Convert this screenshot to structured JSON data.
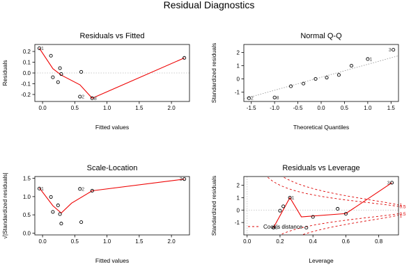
{
  "figure": {
    "title": "Residual Diagnostics"
  },
  "chart_data": [
    {
      "type": "scatter",
      "title": "Residuals vs Fitted",
      "xlabel": "Fitted values",
      "ylabel": "Residuals",
      "xlim": [
        -0.12,
        2.28
      ],
      "ylim": [
        -0.265,
        0.265
      ],
      "xticks": [
        0,
        0.5,
        1,
        1.5,
        2
      ],
      "xtick_labels": [
        "0.0",
        "0.5",
        "1.0",
        "1.5",
        "2.0"
      ],
      "yticks": [
        -0.2,
        -0.1,
        0,
        0.1,
        0.2
      ],
      "ytick_labels": [
        "-0.2",
        "-0.1",
        "0.0",
        "0.1",
        "0.2"
      ],
      "reference_line": "dotted horizontal at 0",
      "points": [
        {
          "x": -0.05,
          "y": 0.23,
          "label": "1"
        },
        {
          "x": 0.13,
          "y": 0.16
        },
        {
          "x": 0.16,
          "y": -0.04
        },
        {
          "x": 0.24,
          "y": -0.085
        },
        {
          "x": 0.27,
          "y": 0.045
        },
        {
          "x": 0.29,
          "y": -0.01
        },
        {
          "x": 0.58,
          "y": -0.22,
          "label": "2"
        },
        {
          "x": 0.6,
          "y": 0.01
        },
        {
          "x": 0.77,
          "y": -0.235,
          "label": "8"
        },
        {
          "x": 2.2,
          "y": 0.14
        }
      ],
      "smoother": [
        [
          -0.05,
          0.23
        ],
        [
          0.16,
          0.04
        ],
        [
          0.29,
          -0.02
        ],
        [
          0.58,
          -0.11
        ],
        [
          0.77,
          -0.235
        ],
        [
          2.2,
          0.14
        ]
      ]
    },
    {
      "type": "scatter",
      "title": "Normal Q-Q",
      "xlabel": "Theoretical Quantiles",
      "ylabel": "Standardized residuals",
      "xlim": [
        -1.66,
        1.66
      ],
      "ylim": [
        -1.7,
        2.6
      ],
      "xticks": [
        -1.5,
        -1,
        -0.5,
        0,
        0.5,
        1,
        1.5
      ],
      "xtick_labels": [
        "-1.5",
        "-1.0",
        "-0.5",
        "0.0",
        "0.5",
        "1.0",
        "1.5"
      ],
      "yticks": [
        -1,
        0,
        1,
        2
      ],
      "ytick_labels": [
        "-1",
        "0",
        "1",
        "2"
      ],
      "reference_line": "dotted diagonal",
      "ref_line_points": [
        [
          -1.66,
          -1.5
        ],
        [
          1.66,
          1.75
        ]
      ],
      "points": [
        {
          "x": -1.55,
          "y": -1.45,
          "label": "2"
        },
        {
          "x": -1.0,
          "y": -1.4,
          "label": "8"
        },
        {
          "x": -0.65,
          "y": -0.55
        },
        {
          "x": -0.38,
          "y": -0.35
        },
        {
          "x": -0.12,
          "y": 0.0
        },
        {
          "x": 0.12,
          "y": 0.1
        },
        {
          "x": 0.38,
          "y": 0.3
        },
        {
          "x": 0.65,
          "y": 1.0
        },
        {
          "x": 1.0,
          "y": 1.5,
          "label": "1"
        },
        {
          "x": 1.55,
          "y": 2.2,
          "label": "3"
        }
      ]
    },
    {
      "type": "scatter",
      "title": "Scale-Location",
      "xlabel": "Fitted values",
      "ylabel": "√|Standardized residuals|",
      "xlim": [
        -0.12,
        2.28
      ],
      "ylim": [
        -0.05,
        1.55
      ],
      "xticks": [
        0,
        0.5,
        1,
        1.5,
        2
      ],
      "xtick_labels": [
        "0.0",
        "0.5",
        "1.0",
        "1.5",
        "2.0"
      ],
      "yticks": [
        0,
        0.5,
        1,
        1.5
      ],
      "ytick_labels": [
        "0.0",
        "0.5",
        "1.0",
        "1.5"
      ],
      "points": [
        {
          "x": -0.05,
          "y": 1.22,
          "label": "1"
        },
        {
          "x": 0.13,
          "y": 0.99
        },
        {
          "x": 0.16,
          "y": 0.58
        },
        {
          "x": 0.24,
          "y": 0.76
        },
        {
          "x": 0.27,
          "y": 0.52
        },
        {
          "x": 0.29,
          "y": 0.26
        },
        {
          "x": 0.58,
          "y": 1.21,
          "label": "2"
        },
        {
          "x": 0.6,
          "y": 0.3
        },
        {
          "x": 0.77,
          "y": 1.16
        },
        {
          "x": 2.2,
          "y": 1.48,
          "label": "3"
        }
      ],
      "smoother": [
        [
          -0.05,
          1.24
        ],
        [
          0.16,
          0.75
        ],
        [
          0.29,
          0.55
        ],
        [
          0.45,
          0.82
        ],
        [
          0.77,
          1.16
        ],
        [
          2.2,
          1.48
        ]
      ]
    },
    {
      "type": "scatter",
      "title": "Residuals vs Leverage",
      "xlabel": "Leverage",
      "ylabel": "Standardized residuals",
      "xlim": [
        -0.02,
        0.92
      ],
      "ylim": [
        -2.0,
        2.7
      ],
      "xticks": [
        0,
        0.2,
        0.4,
        0.6,
        0.8
      ],
      "xtick_labels": [
        "0.0",
        "0.2",
        "0.4",
        "0.6",
        "0.8"
      ],
      "yticks": [
        -1,
        0,
        1,
        2
      ],
      "ytick_labels": [
        "-1",
        "0",
        "1",
        "2"
      ],
      "points": [
        {
          "x": 0.16,
          "y": -1.42,
          "label": "8"
        },
        {
          "x": 0.2,
          "y": -0.05
        },
        {
          "x": 0.22,
          "y": 0.3
        },
        {
          "x": 0.26,
          "y": 1.0,
          "label": "1"
        },
        {
          "x": 0.36,
          "y": -1.42
        },
        {
          "x": 0.4,
          "y": -0.55
        },
        {
          "x": 0.55,
          "y": 0.1
        },
        {
          "x": 0.6,
          "y": -0.3
        },
        {
          "x": 0.88,
          "y": 2.2,
          "label": "3"
        }
      ],
      "smoother": [
        [
          0.16,
          -1.42
        ],
        [
          0.26,
          1.0
        ],
        [
          0.33,
          -0.55
        ],
        [
          0.6,
          -0.28
        ],
        [
          0.88,
          2.2
        ]
      ],
      "cook_contours": [
        {
          "level": 0.5,
          "label": "0.5"
        },
        {
          "level": 1,
          "label": "1"
        }
      ],
      "legend": {
        "label": "Cook's distance",
        "placement": "bottom-left"
      }
    }
  ]
}
